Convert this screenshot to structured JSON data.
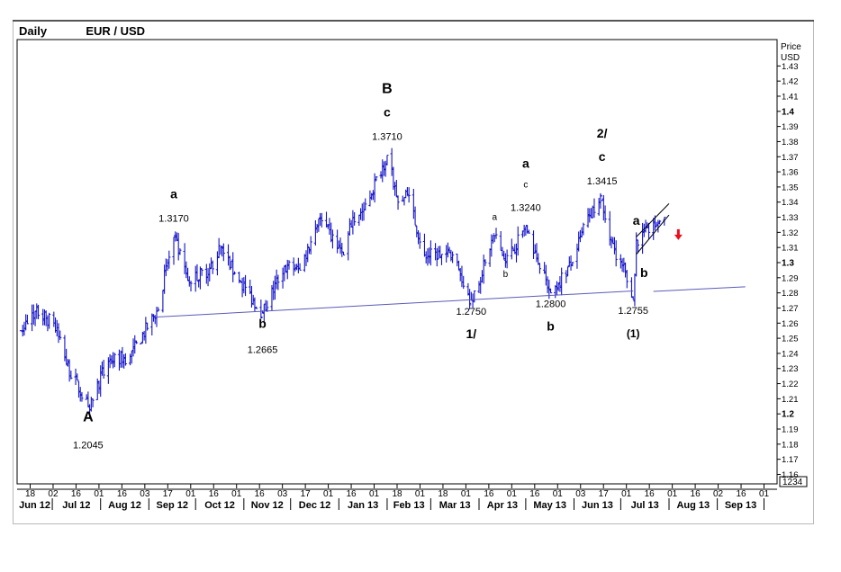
{
  "header": {
    "period": "Daily",
    "symbol": "EUR / USD"
  },
  "axis": {
    "price_label": "Price",
    "currency_label": "USD",
    "last_box": "1234"
  },
  "chart_data": {
    "type": "ohlc",
    "title": "EUR / USD",
    "period": "Daily",
    "ylabel": "Price USD",
    "ylim": [
      1.155,
      1.44
    ],
    "y_ticks": [
      1.43,
      1.42,
      1.41,
      1.4,
      1.39,
      1.38,
      1.37,
      1.36,
      1.35,
      1.34,
      1.33,
      1.32,
      1.31,
      1.3,
      1.29,
      1.28,
      1.27,
      1.26,
      1.25,
      1.24,
      1.23,
      1.22,
      1.21,
      1.2,
      1.19,
      1.18,
      1.17,
      1.16
    ],
    "y_ticks_bold": [
      1.4,
      1.3,
      1.2
    ],
    "day_ticks": [
      "18",
      "02",
      "16",
      "01",
      "16",
      "03",
      "17",
      "01",
      "16",
      "01",
      "16",
      "03",
      "17",
      "01",
      "16",
      "01",
      "18",
      "01",
      "18",
      "01",
      "16",
      "01",
      "16",
      "01",
      "03",
      "17",
      "01",
      "16",
      "01",
      "16",
      "02",
      "16",
      "01"
    ],
    "months": [
      "Jun 12",
      "Jul 12",
      "Aug 12",
      "Sep 12",
      "Oct 12",
      "Nov 12",
      "Dec 12",
      "Jan 13",
      "Feb 13",
      "Mar 13",
      "Apr 13",
      "May 13",
      "Jun 13",
      "Jul 13",
      "Aug 13",
      "Sep 13"
    ],
    "anchors": [
      {
        "date": "2012-06-11",
        "price": 1.255
      },
      {
        "date": "2012-06-20",
        "price": 1.268
      },
      {
        "date": "2012-07-02",
        "price": 1.26
      },
      {
        "date": "2012-07-10",
        "price": 1.233
      },
      {
        "date": "2012-07-24",
        "price": 1.2045
      },
      {
        "date": "2012-08-06",
        "price": 1.235
      },
      {
        "date": "2012-08-20",
        "price": 1.238
      },
      {
        "date": "2012-09-06",
        "price": 1.268
      },
      {
        "date": "2012-09-17",
        "price": 1.317
      },
      {
        "date": "2012-09-26",
        "price": 1.288
      },
      {
        "date": "2012-10-10",
        "price": 1.296
      },
      {
        "date": "2012-10-17",
        "price": 1.31
      },
      {
        "date": "2012-10-26",
        "price": 1.293
      },
      {
        "date": "2012-11-13",
        "price": 1.2665
      },
      {
        "date": "2012-11-27",
        "price": 1.298
      },
      {
        "date": "2012-12-07",
        "price": 1.295
      },
      {
        "date": "2012-12-19",
        "price": 1.329
      },
      {
        "date": "2013-01-04",
        "price": 1.305
      },
      {
        "date": "2013-01-10",
        "price": 1.33
      },
      {
        "date": "2013-01-17",
        "price": 1.335
      },
      {
        "date": "2013-02-01",
        "price": 1.371
      },
      {
        "date": "2013-02-08",
        "price": 1.34
      },
      {
        "date": "2013-02-14",
        "price": 1.345
      },
      {
        "date": "2013-02-25",
        "price": 1.305
      },
      {
        "date": "2013-03-15",
        "price": 1.305
      },
      {
        "date": "2013-03-27",
        "price": 1.275
      },
      {
        "date": "2013-04-05",
        "price": 1.3
      },
      {
        "date": "2013-04-11",
        "price": 1.318
      },
      {
        "date": "2013-04-18",
        "price": 1.3
      },
      {
        "date": "2013-05-01",
        "price": 1.324
      },
      {
        "date": "2013-05-08",
        "price": 1.303
      },
      {
        "date": "2013-05-17",
        "price": 1.28
      },
      {
        "date": "2013-05-31",
        "price": 1.3
      },
      {
        "date": "2013-06-10",
        "price": 1.331
      },
      {
        "date": "2013-06-19",
        "price": 1.3415
      },
      {
        "date": "2013-06-24",
        "price": 1.315
      },
      {
        "date": "2013-07-02",
        "price": 1.298
      },
      {
        "date": "2013-07-09",
        "price": 1.2755
      },
      {
        "date": "2013-07-11",
        "price": 1.315
      },
      {
        "date": "2013-07-19",
        "price": 1.32
      },
      {
        "date": "2013-07-29",
        "price": 1.33
      }
    ],
    "annotations": [
      {
        "text": "A",
        "date": "2012-07-24",
        "price": 1.2045,
        "role": "wave",
        "size": "xl",
        "label_pos": "below"
      },
      {
        "text": "1.2045",
        "date": "2012-07-24",
        "price": 1.2045,
        "role": "price",
        "label_pos": "below"
      },
      {
        "text": "a",
        "date": "2012-09-17",
        "price": 1.317,
        "role": "wave",
        "size": "l",
        "label_pos": "above"
      },
      {
        "text": "1.3170",
        "date": "2012-09-17",
        "price": 1.317,
        "role": "price",
        "label_pos": "above"
      },
      {
        "text": "b",
        "date": "2012-11-13",
        "price": 1.2665,
        "role": "wave",
        "size": "l",
        "label_pos": "below"
      },
      {
        "text": "1.2665",
        "date": "2012-11-13",
        "price": 1.2665,
        "role": "price",
        "label_pos": "below"
      },
      {
        "text": "B",
        "date": "2013-02-01",
        "price": 1.371,
        "role": "wave",
        "size": "xl",
        "label_pos": "above"
      },
      {
        "text": "c",
        "date": "2013-02-01",
        "price": 1.371,
        "role": "wave",
        "size": "l",
        "label_pos": "above"
      },
      {
        "text": "1.3710",
        "date": "2013-02-01",
        "price": 1.371,
        "role": "price",
        "label_pos": "above"
      },
      {
        "text": "1.2750",
        "date": "2013-03-27",
        "price": 1.275,
        "role": "price",
        "label_pos": "below"
      },
      {
        "text": "1/",
        "date": "2013-03-27",
        "price": 1.275,
        "role": "wave",
        "size": "l",
        "label_pos": "below"
      },
      {
        "text": "a",
        "date": "2013-04-11",
        "price": 1.318,
        "role": "wave",
        "size": "s",
        "label_pos": "above"
      },
      {
        "text": "b",
        "date": "2013-04-18",
        "price": 1.3,
        "role": "wave",
        "size": "s",
        "label_pos": "below"
      },
      {
        "text": "a",
        "date": "2013-05-01",
        "price": 1.324,
        "role": "wave",
        "size": "l",
        "label_pos": "above"
      },
      {
        "text": "c",
        "date": "2013-05-01",
        "price": 1.324,
        "role": "wave",
        "size": "s",
        "label_pos": "above"
      },
      {
        "text": "1.3240",
        "date": "2013-05-01",
        "price": 1.324,
        "role": "price",
        "label_pos": "above"
      },
      {
        "text": "1.2800",
        "date": "2013-05-17",
        "price": 1.28,
        "role": "price",
        "label_pos": "below"
      },
      {
        "text": "b",
        "date": "2013-05-17",
        "price": 1.28,
        "role": "wave",
        "size": "l",
        "label_pos": "below"
      },
      {
        "text": "2/",
        "date": "2013-06-19",
        "price": 1.3415,
        "role": "wave",
        "size": "l",
        "label_pos": "above"
      },
      {
        "text": "c",
        "date": "2013-06-19",
        "price": 1.3415,
        "role": "wave",
        "size": "l",
        "label_pos": "above"
      },
      {
        "text": "1.3415",
        "date": "2013-06-19",
        "price": 1.3415,
        "role": "price",
        "label_pos": "above"
      },
      {
        "text": "1.2755",
        "date": "2013-07-09",
        "price": 1.2755,
        "role": "price",
        "label_pos": "below"
      },
      {
        "text": "(1)",
        "date": "2013-07-09",
        "price": 1.2755,
        "role": "wave",
        "size": "m",
        "label_pos": "below"
      },
      {
        "text": "a",
        "date": "2013-07-11",
        "price": 1.315,
        "role": "wave",
        "size": "l",
        "label_pos": "above"
      },
      {
        "text": "b",
        "date": "2013-07-16",
        "price": 1.3,
        "role": "wave",
        "size": "l",
        "label_pos": "below"
      }
    ],
    "trendlines": [
      {
        "from": {
          "date": "2012-09-06",
          "price": 1.264
        },
        "to": {
          "date": "2013-07-09",
          "price": 1.2813
        }
      },
      {
        "from": {
          "date": "2013-07-22",
          "price": 1.281
        },
        "to": {
          "date": "2013-09-19",
          "price": 1.284
        }
      }
    ],
    "channel": [
      {
        "from": {
          "date": "2013-07-11",
          "price": 1.3055
        },
        "to": {
          "date": "2013-08-01",
          "price": 1.3315
        }
      },
      {
        "from": {
          "date": "2013-07-11",
          "price": 1.317
        },
        "to": {
          "date": "2013-08-01",
          "price": 1.339
        }
      }
    ],
    "signal": {
      "type": "down-arrow",
      "date": "2013-08-07",
      "price": 1.3185,
      "color": "#e8101e"
    },
    "colors": {
      "bars": "#1212c8",
      "lines": "#5a5ab8",
      "axis": "#000000"
    }
  }
}
